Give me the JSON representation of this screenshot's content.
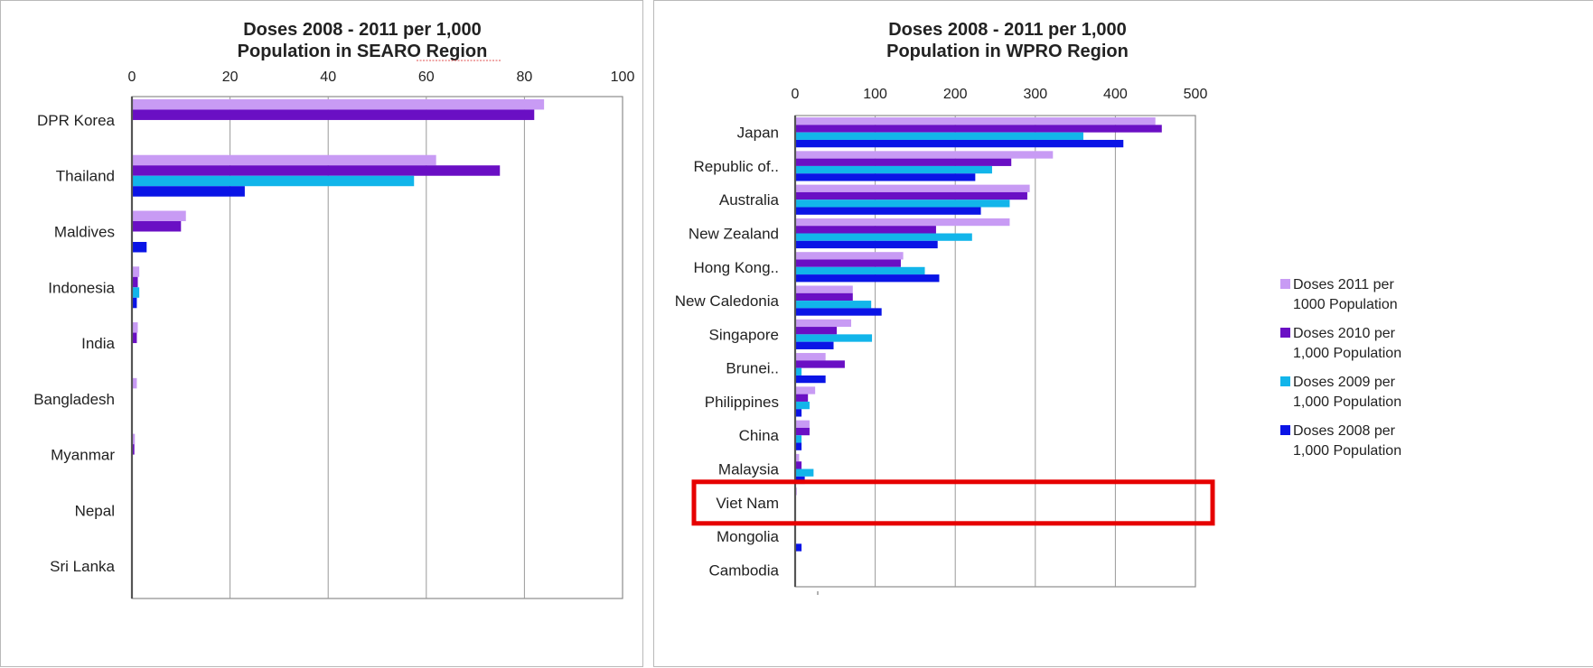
{
  "colors": {
    "doses_2011": "#c89bf4",
    "doses_2010": "#6a0fc4",
    "doses_2009": "#12b5ea",
    "doses_2008": "#0a14e6",
    "highlight": "#e60000",
    "marker": "#ffff00"
  },
  "chart_data": [
    {
      "type": "bar",
      "orientation": "horizontal",
      "title_line1": "Doses 2008 - 2011 per 1,000",
      "title_line2": "Population in SEARO Region",
      "xlim": [
        0,
        100
      ],
      "xticks": [
        0,
        20,
        40,
        60,
        80,
        100
      ],
      "xaxis_position": "top",
      "grid": true,
      "categories": [
        "DPR Korea",
        "Thailand",
        "Maldives",
        "Indonesia",
        "India",
        "Bangladesh",
        "Myanmar",
        "Nepal",
        "Sri Lanka"
      ],
      "series": [
        {
          "name": "Doses 2011 per 1000 Population",
          "values": [
            84,
            62,
            11,
            1.5,
            1.2,
            1,
            0.6,
            0.2,
            0.1
          ]
        },
        {
          "name": "Doses 2010 per 1,000 Population",
          "values": [
            82,
            75,
            10,
            1.2,
            1,
            0,
            0.5,
            0.1,
            0
          ]
        },
        {
          "name": "Doses 2009 per 1,000 Population",
          "values": [
            0,
            57.5,
            0,
            1.5,
            0,
            0,
            0,
            0,
            0
          ]
        },
        {
          "name": "Doses 2008 per 1,000 Population",
          "values": [
            0,
            23,
            3,
            1,
            0,
            0,
            0,
            0,
            0
          ]
        }
      ]
    },
    {
      "type": "bar",
      "orientation": "horizontal",
      "title_line1": "Doses 2008 - 2011 per  1,000",
      "title_line2": "Population in WPRO Region",
      "xlim": [
        0,
        500
      ],
      "xticks": [
        0,
        100,
        200,
        300,
        400,
        500
      ],
      "xaxis_position": "top",
      "grid": true,
      "categories": [
        "Japan",
        "Republic of..",
        "Australia",
        "New Zealand",
        "Hong Kong..",
        "New Caledonia",
        "Singapore",
        "Brunei..",
        "Philippines",
        "China",
        "Malaysia",
        "Viet Nam",
        "Mongolia",
        "Cambodia"
      ],
      "highlighted_category": "Viet Nam",
      "series": [
        {
          "name": "Doses 2011 per 1000 Population",
          "values": [
            450,
            322,
            293,
            268,
            135,
            72,
            70,
            38,
            25,
            18,
            5,
            2,
            0,
            0
          ]
        },
        {
          "name": "Doses 2010 per 1,000 Population",
          "values": [
            458,
            270,
            290,
            176,
            132,
            72,
            52,
            62,
            16,
            18,
            8,
            1,
            0,
            0
          ]
        },
        {
          "name": "Doses 2009 per 1,000 Population",
          "values": [
            360,
            246,
            268,
            221,
            162,
            95,
            96,
            8,
            18,
            8,
            23,
            1,
            0,
            0
          ]
        },
        {
          "name": "Doses 2008 per 1,000 Population",
          "values": [
            410,
            225,
            232,
            178,
            180,
            108,
            48,
            38,
            8,
            8,
            12,
            1,
            8,
            0
          ]
        }
      ],
      "legend": {
        "placement": "right",
        "entries": [
          {
            "line1": "Doses 2011 per",
            "line2": "1000 Population"
          },
          {
            "line1": "Doses 2010 per",
            "line2": "1,000 Population"
          },
          {
            "line1": "Doses 2009 per",
            "line2": "1,000 Population"
          },
          {
            "line1": "Doses 2008 per",
            "line2": "1,000 Population"
          }
        ]
      }
    }
  ]
}
